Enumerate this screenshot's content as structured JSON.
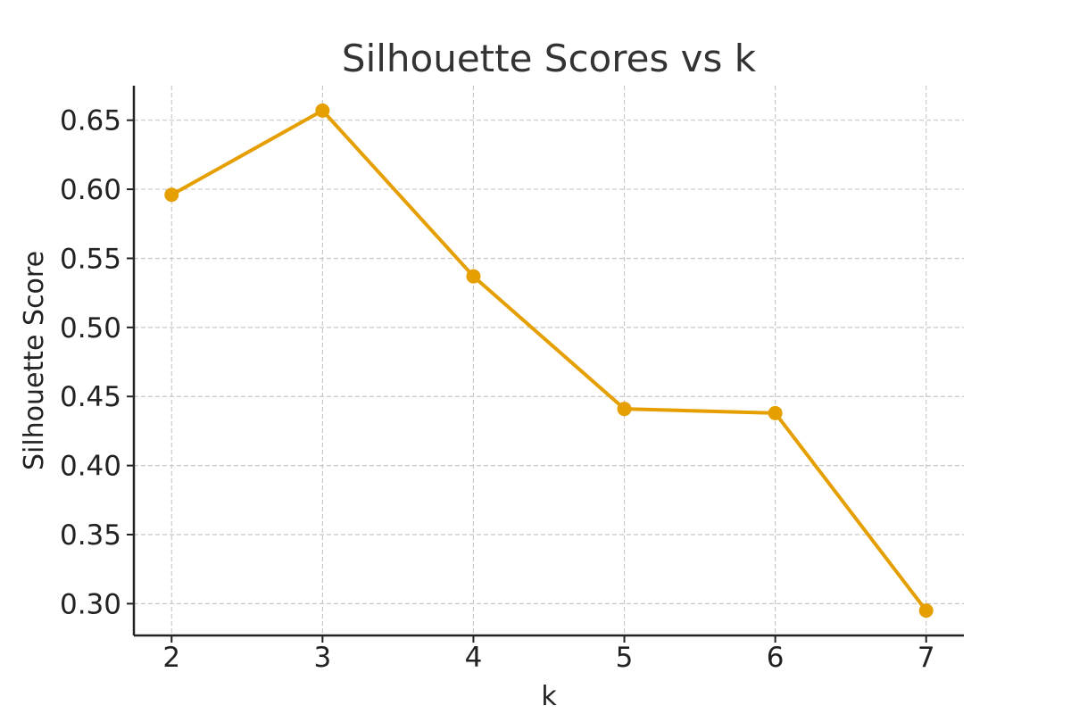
{
  "chart_data": {
    "type": "line",
    "title": "Silhouette Scores vs k",
    "xlabel": "k",
    "ylabel": "Silhouette Score",
    "x": [
      2,
      3,
      4,
      5,
      6,
      7
    ],
    "series": [
      {
        "values": [
          0.596,
          0.657,
          0.537,
          0.441,
          0.438,
          0.295
        ],
        "color": "#E69F00"
      }
    ],
    "xticks": [
      "2",
      "3",
      "4",
      "5",
      "6",
      "7"
    ],
    "yticks": [
      0.3,
      0.35,
      0.4,
      0.45,
      0.5,
      0.55,
      0.6,
      0.65
    ],
    "ytick_labels": [
      "0.30",
      "0.35",
      "0.40",
      "0.45",
      "0.50",
      "0.55",
      "0.60",
      "0.65"
    ],
    "xlim": [
      1.75,
      7.25
    ],
    "ylim": [
      0.277,
      0.675
    ],
    "grid": true,
    "marker": "circle"
  }
}
